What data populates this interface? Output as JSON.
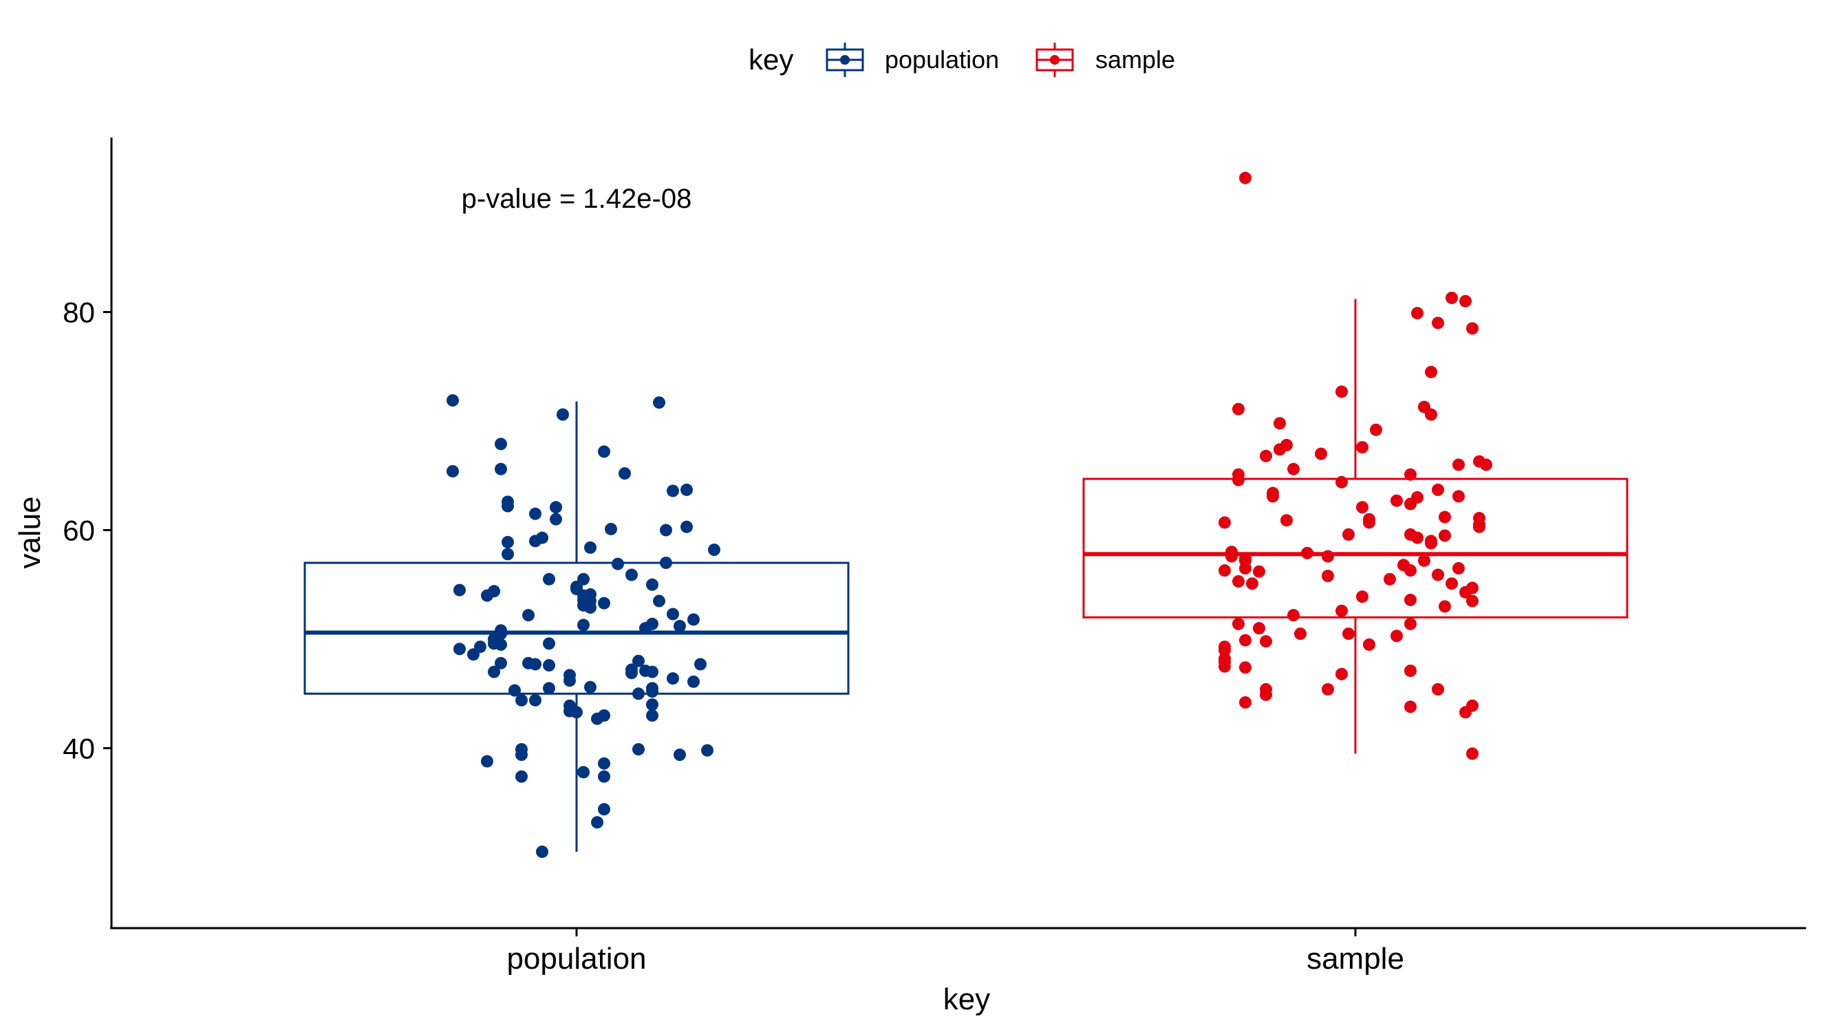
{
  "chart_data": {
    "type": "box",
    "title": "",
    "xlabel": "key",
    "ylabel": "value",
    "annotation": "p-value = 1.42e-08",
    "categories": [
      "population",
      "sample"
    ],
    "yticks": [
      40,
      60,
      80
    ],
    "ylim": [
      23.5,
      96
    ],
    "grid": false,
    "legend": {
      "title": "key",
      "position": "top",
      "entries": [
        "population",
        "sample"
      ]
    },
    "colors": {
      "population": "#023580",
      "sample": "#e3000f",
      "axis": "#000000"
    },
    "boxes": [
      {
        "name": "population",
        "whisker_low": 30.5,
        "q1": 45.0,
        "median": 50.6,
        "q3": 57.0,
        "whisker_high": 71.8
      },
      {
        "name": "sample",
        "whisker_low": 39.5,
        "q1": 52.0,
        "median": 57.8,
        "q3": 64.7,
        "whisker_high": 81.2
      }
    ],
    "series": [
      {
        "name": "population",
        "points": [
          [
            -0.18,
            71.9
          ],
          [
            -0.18,
            65.4
          ],
          [
            -0.17,
            54.5
          ],
          [
            -0.14,
            49.3
          ],
          [
            -0.12,
            50.0
          ],
          [
            -0.17,
            49.1
          ],
          [
            -0.15,
            48.6
          ],
          [
            -0.13,
            54.0
          ],
          [
            -0.13,
            38.8
          ],
          [
            -0.12,
            54.4
          ],
          [
            -0.12,
            47.0
          ],
          [
            -0.12,
            49.6
          ],
          [
            -0.11,
            50.8
          ],
          [
            -0.11,
            47.8
          ],
          [
            -0.11,
            50.5
          ],
          [
            -0.11,
            49.5
          ],
          [
            -0.11,
            67.9
          ],
          [
            -0.11,
            65.6
          ],
          [
            -0.1,
            62.6
          ],
          [
            -0.1,
            62.2
          ],
          [
            -0.1,
            58.9
          ],
          [
            -0.1,
            57.8
          ],
          [
            -0.09,
            45.3
          ],
          [
            -0.08,
            44.4
          ],
          [
            -0.08,
            37.4
          ],
          [
            -0.08,
            39.4
          ],
          [
            -0.08,
            39.9
          ],
          [
            -0.07,
            47.8
          ],
          [
            -0.07,
            52.2
          ],
          [
            -0.06,
            44.4
          ],
          [
            -0.06,
            47.7
          ],
          [
            -0.06,
            61.5
          ],
          [
            -0.06,
            59.0
          ],
          [
            -0.05,
            30.5
          ],
          [
            -0.05,
            59.3
          ],
          [
            -0.04,
            55.5
          ],
          [
            -0.04,
            49.6
          ],
          [
            -0.04,
            45.5
          ],
          [
            -0.04,
            47.6
          ],
          [
            -0.03,
            62.1
          ],
          [
            -0.03,
            61.0
          ],
          [
            -0.02,
            70.6
          ],
          [
            -0.01,
            46.2
          ],
          [
            -0.01,
            46.7
          ],
          [
            -0.01,
            43.9
          ],
          [
            -0.01,
            43.4
          ],
          [
            0.0,
            54.8
          ],
          [
            0.0,
            54.6
          ],
          [
            0.0,
            43.3
          ],
          [
            0.01,
            54.0
          ],
          [
            0.01,
            53.6
          ],
          [
            0.01,
            37.8
          ],
          [
            0.01,
            51.3
          ],
          [
            0.01,
            55.5
          ],
          [
            0.01,
            53.1
          ],
          [
            0.02,
            54.1
          ],
          [
            0.02,
            58.4
          ],
          [
            0.02,
            53.5
          ],
          [
            0.02,
            45.6
          ],
          [
            0.02,
            52.9
          ],
          [
            0.03,
            42.7
          ],
          [
            0.03,
            33.2
          ],
          [
            0.04,
            43.0
          ],
          [
            0.04,
            37.4
          ],
          [
            0.04,
            67.2
          ],
          [
            0.04,
            53.3
          ],
          [
            0.04,
            38.6
          ],
          [
            0.04,
            34.4
          ],
          [
            0.05,
            60.1
          ],
          [
            0.06,
            56.9
          ],
          [
            0.07,
            65.2
          ],
          [
            0.08,
            47.2
          ],
          [
            0.08,
            55.9
          ],
          [
            0.08,
            46.9
          ],
          [
            0.09,
            39.9
          ],
          [
            0.09,
            45.0
          ],
          [
            0.09,
            48.0
          ],
          [
            0.1,
            51.0
          ],
          [
            0.1,
            47.1
          ],
          [
            0.11,
            45.5
          ],
          [
            0.11,
            45.2
          ],
          [
            0.11,
            55.0
          ],
          [
            0.11,
            51.4
          ],
          [
            0.11,
            43.0
          ],
          [
            0.11,
            44.0
          ],
          [
            0.11,
            47.0
          ],
          [
            0.12,
            53.5
          ],
          [
            0.12,
            71.7
          ],
          [
            0.13,
            57.0
          ],
          [
            0.13,
            60.0
          ],
          [
            0.14,
            52.3
          ],
          [
            0.14,
            46.4
          ],
          [
            0.15,
            51.2
          ],
          [
            0.14,
            63.6
          ],
          [
            0.15,
            39.4
          ],
          [
            0.16,
            63.7
          ],
          [
            0.16,
            60.3
          ],
          [
            0.17,
            51.8
          ],
          [
            0.17,
            46.1
          ],
          [
            0.18,
            47.7
          ],
          [
            0.19,
            39.8
          ],
          [
            0.2,
            58.2
          ]
        ]
      },
      {
        "name": "sample",
        "points": [
          [
            -0.19,
            60.7
          ],
          [
            -0.19,
            56.3
          ],
          [
            -0.19,
            49.3
          ],
          [
            -0.19,
            48.2
          ],
          [
            -0.19,
            49.0
          ],
          [
            -0.19,
            47.9
          ],
          [
            -0.19,
            47.5
          ],
          [
            -0.18,
            57.6
          ],
          [
            -0.18,
            58.0
          ],
          [
            -0.17,
            51.4
          ],
          [
            -0.17,
            55.3
          ],
          [
            -0.17,
            64.6
          ],
          [
            -0.17,
            65.1
          ],
          [
            -0.17,
            71.1
          ],
          [
            -0.16,
            47.4
          ],
          [
            -0.16,
            56.5
          ],
          [
            -0.16,
            49.9
          ],
          [
            -0.16,
            57.2
          ],
          [
            -0.16,
            44.2
          ],
          [
            -0.16,
            57.4
          ],
          [
            -0.15,
            55.1
          ],
          [
            -0.14,
            56.2
          ],
          [
            -0.14,
            51.0
          ],
          [
            -0.13,
            49.8
          ],
          [
            -0.13,
            45.4
          ],
          [
            -0.13,
            44.9
          ],
          [
            -0.13,
            66.8
          ],
          [
            -0.12,
            63.1
          ],
          [
            -0.12,
            63.4
          ],
          [
            -0.11,
            69.8
          ],
          [
            -0.11,
            67.4
          ],
          [
            -0.1,
            60.9
          ],
          [
            -0.1,
            67.8
          ],
          [
            -0.09,
            65.6
          ],
          [
            -0.09,
            52.2
          ],
          [
            -0.08,
            50.5
          ],
          [
            -0.07,
            57.9
          ],
          [
            -0.05,
            67.0
          ],
          [
            -0.04,
            45.4
          ],
          [
            -0.04,
            55.8
          ],
          [
            -0.04,
            57.6
          ],
          [
            -0.02,
            72.7
          ],
          [
            -0.02,
            64.4
          ],
          [
            -0.02,
            46.8
          ],
          [
            -0.02,
            52.6
          ],
          [
            -0.01,
            59.6
          ],
          [
            -0.01,
            50.5
          ],
          [
            0.01,
            67.6
          ],
          [
            0.01,
            53.9
          ],
          [
            0.01,
            62.1
          ],
          [
            0.02,
            61.0
          ],
          [
            0.02,
            60.7
          ],
          [
            0.02,
            49.5
          ],
          [
            0.03,
            69.2
          ],
          [
            0.05,
            55.5
          ],
          [
            0.06,
            62.7
          ],
          [
            0.06,
            50.3
          ],
          [
            0.07,
            56.8
          ],
          [
            0.08,
            51.4
          ],
          [
            0.08,
            43.8
          ],
          [
            0.08,
            53.6
          ],
          [
            0.08,
            56.3
          ],
          [
            0.08,
            59.6
          ],
          [
            0.08,
            47.1
          ],
          [
            0.08,
            62.4
          ],
          [
            0.08,
            65.1
          ],
          [
            0.09,
            59.3
          ],
          [
            0.09,
            79.9
          ],
          [
            0.09,
            63.0
          ],
          [
            0.1,
            71.3
          ],
          [
            0.1,
            57.2
          ],
          [
            0.11,
            58.8
          ],
          [
            0.11,
            74.5
          ],
          [
            0.11,
            70.6
          ],
          [
            0.11,
            59.0
          ],
          [
            0.12,
            45.4
          ],
          [
            0.12,
            55.9
          ],
          [
            0.12,
            63.7
          ],
          [
            0.12,
            79.0
          ],
          [
            0.13,
            61.2
          ],
          [
            0.13,
            59.5
          ],
          [
            0.13,
            53.0
          ],
          [
            0.14,
            55.1
          ],
          [
            0.14,
            81.3
          ],
          [
            0.15,
            63.1
          ],
          [
            0.15,
            66.0
          ],
          [
            0.15,
            56.5
          ],
          [
            0.16,
            81.0
          ],
          [
            0.16,
            54.3
          ],
          [
            0.16,
            43.3
          ],
          [
            0.17,
            39.5
          ],
          [
            0.17,
            43.9
          ],
          [
            0.17,
            53.5
          ],
          [
            0.17,
            78.5
          ],
          [
            0.17,
            54.7
          ],
          [
            0.18,
            60.3
          ],
          [
            0.18,
            66.3
          ],
          [
            0.18,
            60.5
          ],
          [
            0.18,
            61.1
          ],
          [
            0.19,
            66.0
          ],
          [
            -0.16,
            92.3
          ]
        ]
      }
    ]
  }
}
